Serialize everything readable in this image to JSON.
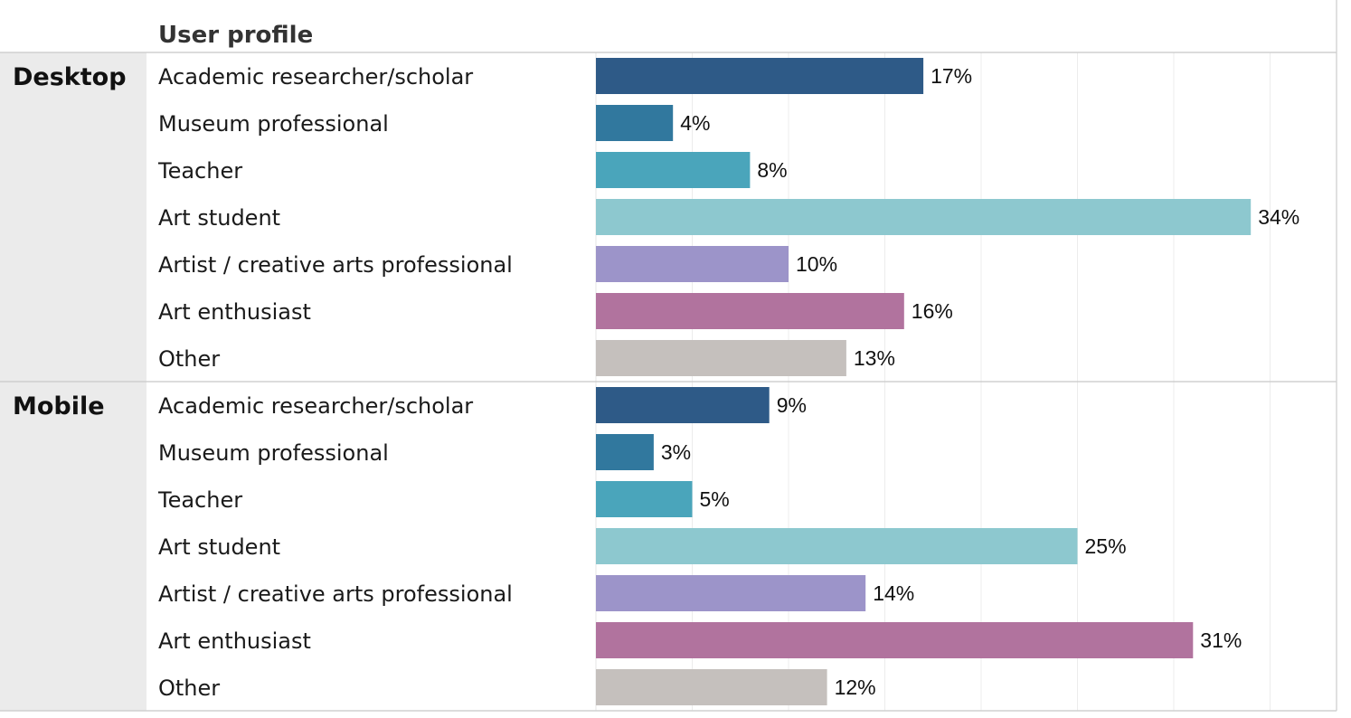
{
  "chart_data": {
    "type": "bar",
    "orientation": "horizontal",
    "header": "User profile",
    "xlim": [
      0,
      35
    ],
    "grid": true,
    "categories": [
      "Academic researcher/scholar",
      "Museum professional",
      "Teacher",
      "Art student",
      "Artist / creative arts professional",
      "Art enthusiast",
      "Other"
    ],
    "colors": [
      "#2e5a87",
      "#31789e",
      "#4aa5bb",
      "#8dc8cf",
      "#9c94c9",
      "#b1739e",
      "#c5c0bd"
    ],
    "series": [
      {
        "name": "Desktop",
        "values": [
          17,
          4,
          8,
          34,
          10,
          16,
          13
        ],
        "labels": [
          "17%",
          "4%",
          "8%",
          "34%",
          "10%",
          "16%",
          "13%"
        ]
      },
      {
        "name": "Mobile",
        "values": [
          9,
          3,
          5,
          25,
          14,
          31,
          12
        ],
        "labels": [
          "9%",
          "3%",
          "5%",
          "25%",
          "14%",
          "31%",
          "12%"
        ]
      }
    ]
  }
}
